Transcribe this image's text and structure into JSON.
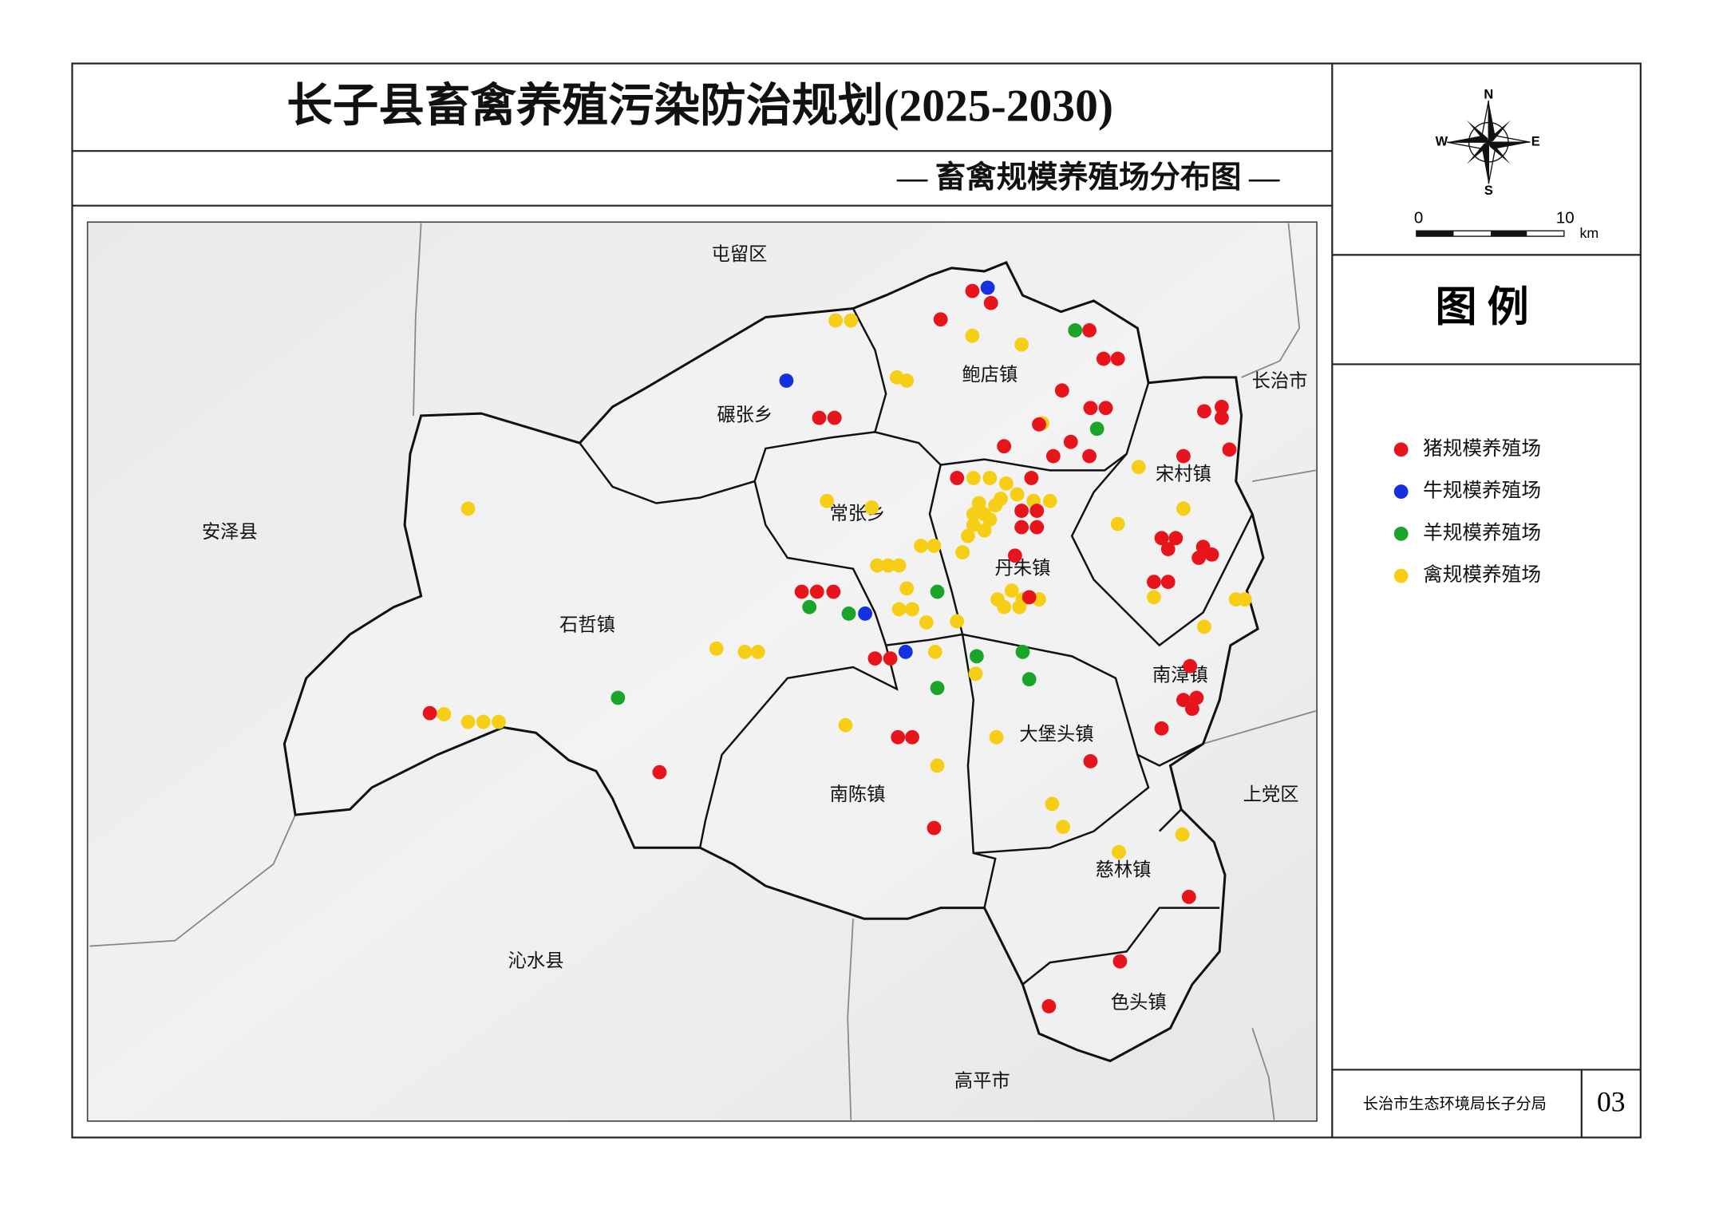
{
  "header": {
    "title": "长子县畜禽养殖污染防治规划(2025-2030)",
    "subtitle": "— 畜禽规模养殖场分布图 —"
  },
  "compass": {
    "n": "N",
    "s": "S",
    "e": "E",
    "w": "W"
  },
  "scale_bar": {
    "start": "0",
    "end": "10",
    "unit": "km"
  },
  "legend": {
    "title": "图 例",
    "items": [
      {
        "label": "猪规模养殖场",
        "color": "#e8141b"
      },
      {
        "label": "牛规模养殖场",
        "color": "#1530e0"
      },
      {
        "label": "羊规模养殖场",
        "color": "#1aa52a"
      },
      {
        "label": "禽规模养殖场",
        "color": "#f7ce16"
      }
    ]
  },
  "places": [
    "屯留区",
    "长治市",
    "安泽县",
    "上党区",
    "沁水县",
    "高平市",
    "碾张乡",
    "鲍店镇",
    "宋村镇",
    "常张乡",
    "丹朱镇",
    "石哲镇",
    "南漳镇",
    "大堡头镇",
    "南陈镇",
    "慈林镇",
    "色头镇"
  ],
  "footer": {
    "organization": "长治市生态环境局长子分局",
    "page": "03"
  }
}
